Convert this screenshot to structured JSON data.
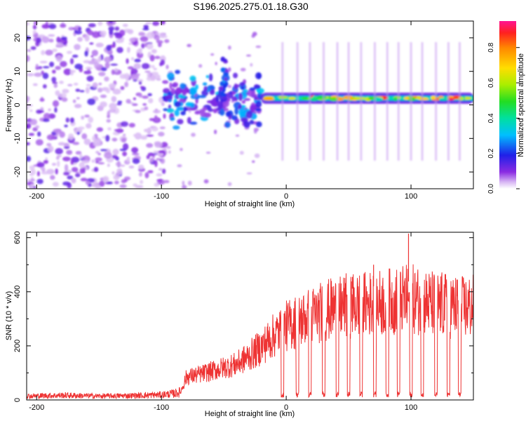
{
  "figure": {
    "title": "S196.2025.275.01.18.G30"
  },
  "chart_data": [
    {
      "type": "heatmap",
      "title": "S196.2025.275.01.18.G30",
      "xlabel": "Height of straight line (km)",
      "ylabel": "Frequency (Hz)",
      "xlim": [
        -208,
        150
      ],
      "ylim": [
        -25,
        25
      ],
      "xticks": [
        -200,
        -100,
        0,
        100
      ],
      "yticks": [
        -20,
        -10,
        0,
        10,
        20
      ],
      "colorbar": {
        "label": "Normalized spectral amplitude",
        "range": [
          0.0,
          0.95
        ],
        "ticks": [
          0.0,
          0.2,
          0.4,
          0.6,
          0.8
        ],
        "tick_labels": [
          "0.0",
          "0.2",
          "0.4",
          "0.6",
          "0.8"
        ]
      },
      "features": {
        "noise_region_km": [
          -208,
          -97
        ],
        "signal_onset_km": -97,
        "signal_frequency_hz": 2,
        "strong_band_km": [
          -20,
          150
        ]
      }
    },
    {
      "type": "line",
      "title": "",
      "xlabel": "Height of straight line (km)",
      "ylabel": "SNR (10 * v/v)",
      "xlim": [
        -208,
        150
      ],
      "ylim": [
        0,
        620
      ],
      "xticks": [
        -200,
        -100,
        0,
        100
      ],
      "xtick_labels": [
        "-200",
        "-100",
        "0",
        "100"
      ],
      "yticks": [
        0,
        200,
        400,
        600
      ],
      "ytick_labels": [
        "0",
        "200",
        "400",
        "600"
      ],
      "color": "#ee3333",
      "series": [
        {
          "name": "SNR",
          "x": [
            -208,
            -180,
            -150,
            -120,
            -100,
            -90,
            -85,
            -80,
            -70,
            -60,
            -50,
            -40,
            -30,
            -20,
            -10,
            0,
            10,
            20,
            30,
            40,
            50,
            60,
            70,
            80,
            90,
            100,
            110,
            120,
            130,
            140,
            150
          ],
          "values": [
            15,
            18,
            15,
            17,
            20,
            25,
            30,
            100,
            110,
            125,
            140,
            155,
            190,
            230,
            280,
            320,
            345,
            365,
            385,
            400,
            410,
            415,
            420,
            425,
            430,
            440,
            425,
            415,
            410,
            400,
            405
          ]
        }
      ],
      "peaks": {
        "x": [
          98,
          70,
          53
        ],
        "values": [
          615,
          500,
          455
        ]
      },
      "dropouts_x": [
        -3,
        9,
        19,
        30,
        41,
        50,
        60,
        71,
        81,
        90,
        100,
        109,
        120,
        130,
        139
      ],
      "dropout_value": 20
    }
  ]
}
